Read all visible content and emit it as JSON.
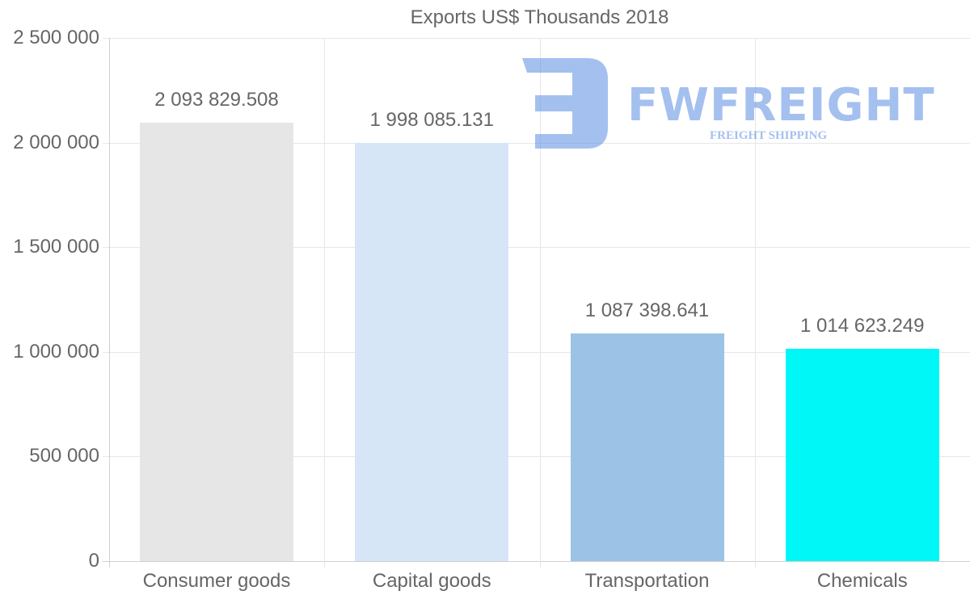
{
  "chart_data": {
    "type": "bar",
    "title": "Exports US$ Thousands 2018",
    "categories": [
      "Consumer goods",
      "Capital goods",
      "Transportation",
      "Chemicals"
    ],
    "values": [
      2093829.508,
      1998085.131,
      1087398.641,
      1014623.249
    ],
    "value_labels": [
      "2 093 829.508",
      "1 998 085.131",
      "1 087 398.641",
      "1 014 623.249"
    ],
    "colors": [
      "#e6e6e6",
      "#d6e6f7",
      "#9cc3e6",
      "#00f7f7"
    ],
    "xlabel": "",
    "ylabel": "",
    "ylim": [
      0,
      2500000
    ],
    "yticks": [
      0,
      500000,
      1000000,
      1500000,
      2000000,
      2500000
    ],
    "ytick_labels": [
      "0",
      "500 000",
      "1 000 000",
      "1 500 000",
      "2 000 000",
      "2 500 000"
    ],
    "grid": true,
    "legend": null
  },
  "watermark": {
    "brand": "FWFREIGHT",
    "tagline": "FREIGHT SHIPPING"
  }
}
